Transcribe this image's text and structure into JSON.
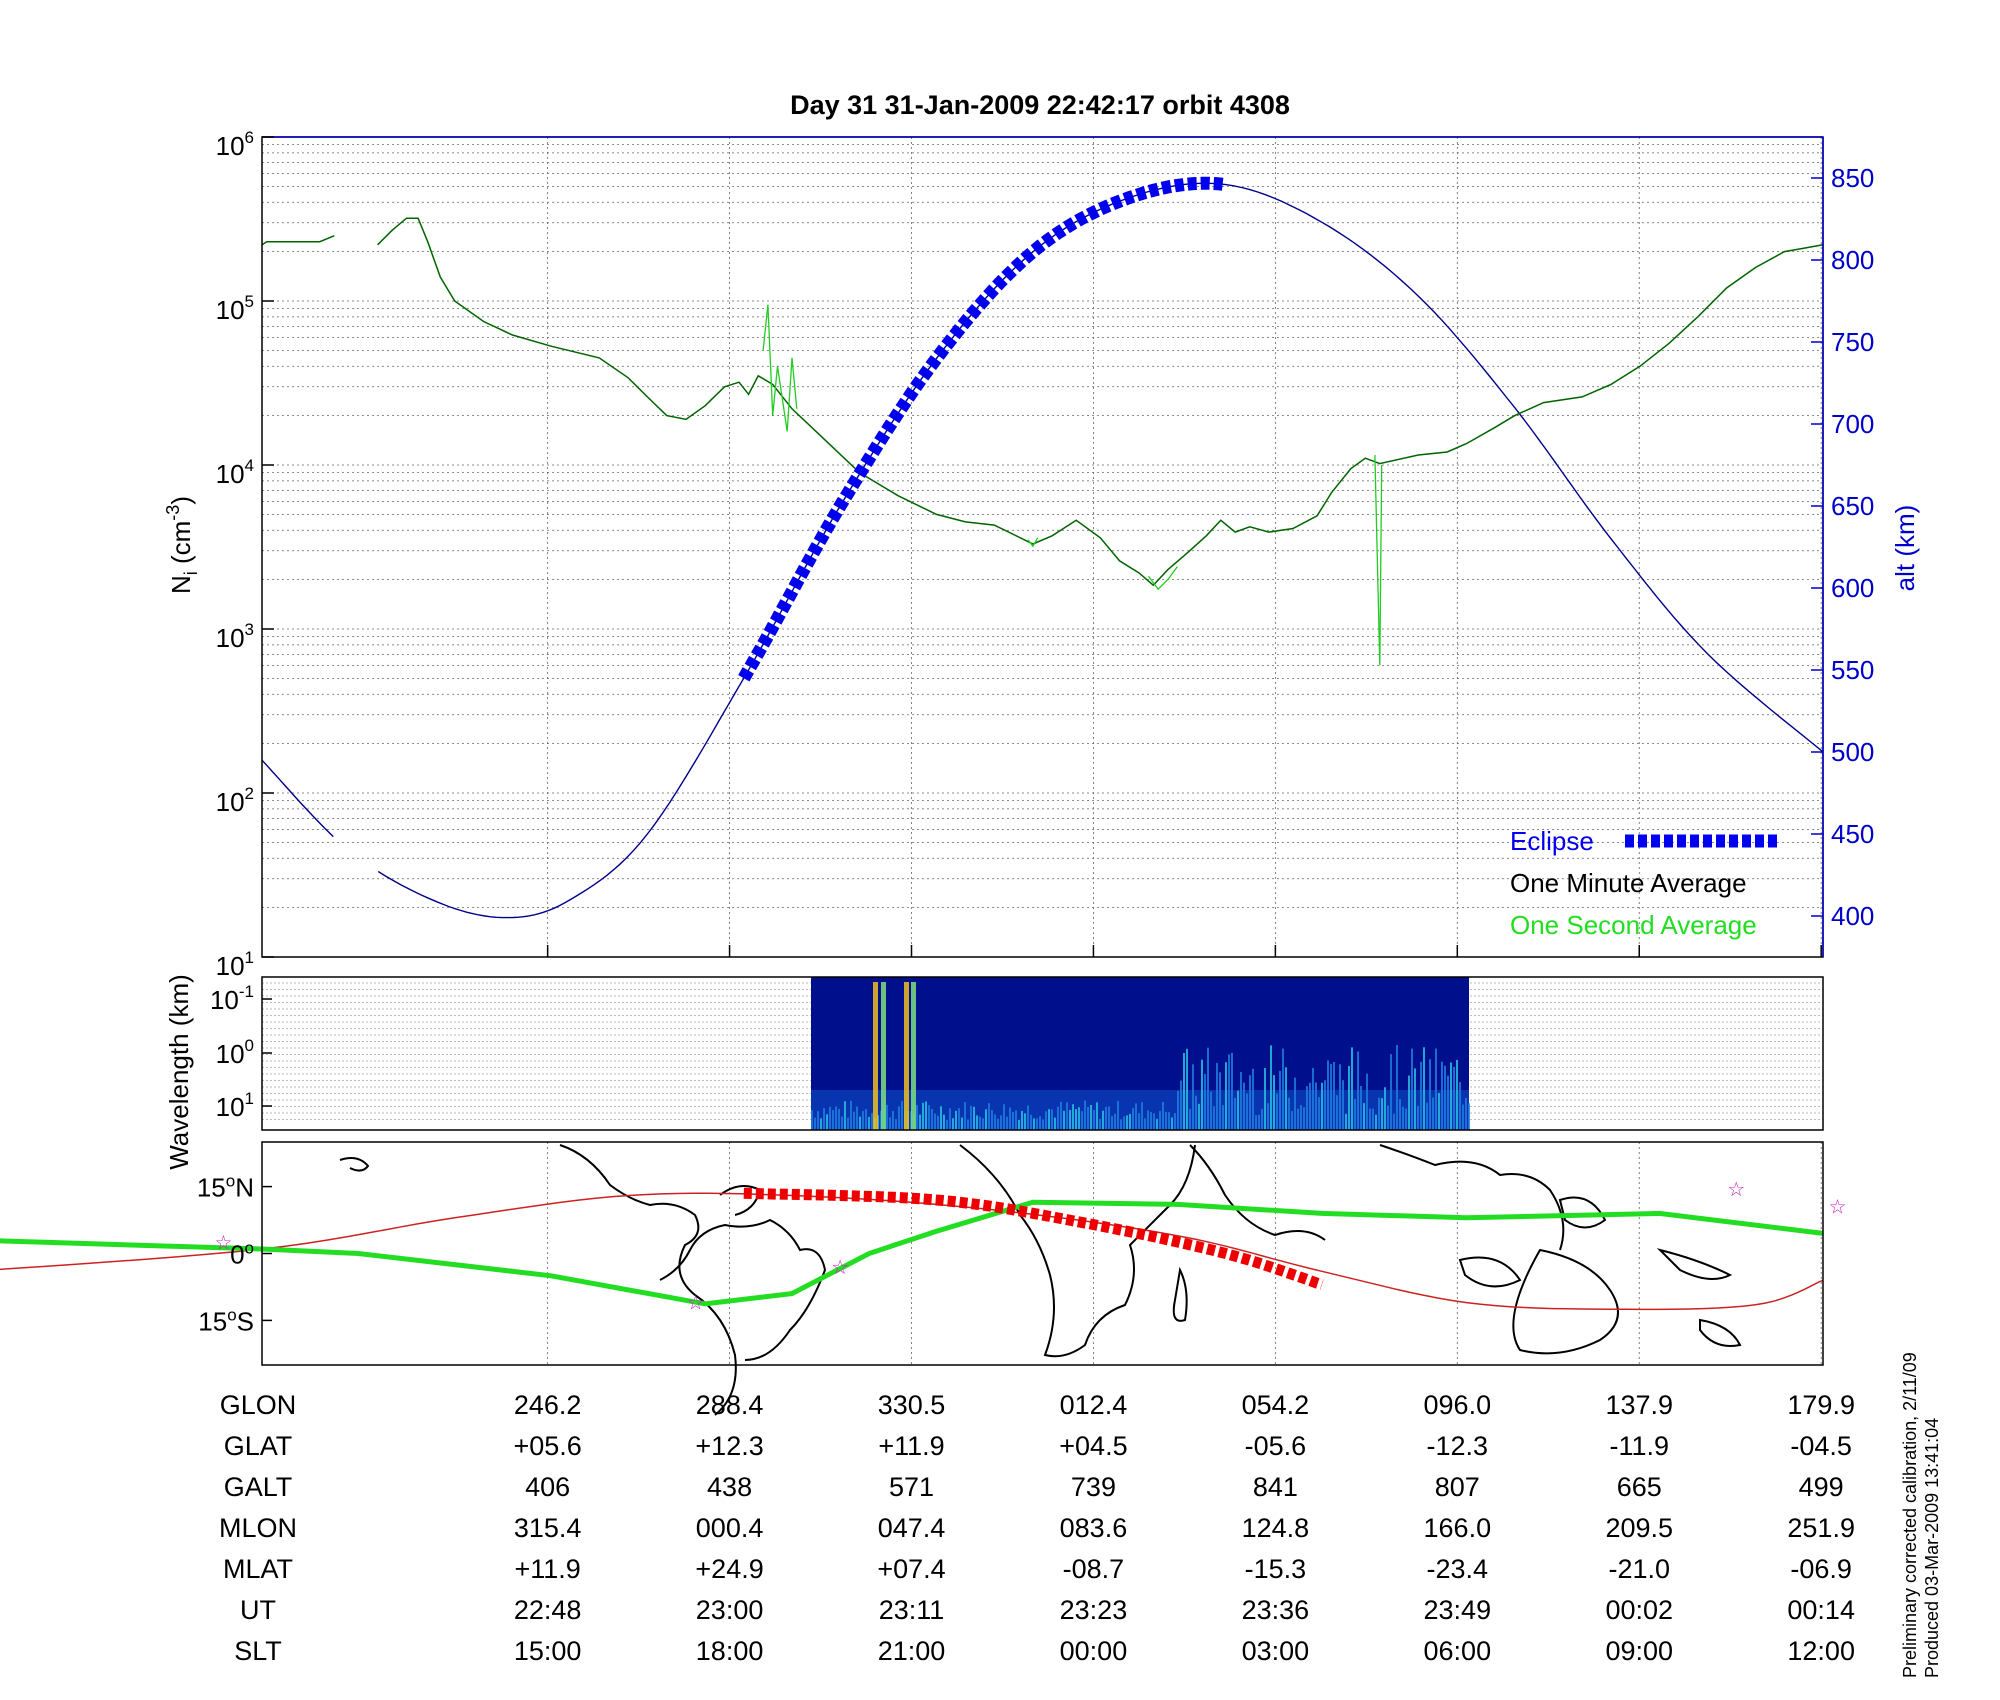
{
  "title": "Day 31  31-Jan-2009 22:42:17   orbit 4308",
  "footnote": {
    "line1": "Preliminary corrected calibration, 2/11/09",
    "line2": "Produced 03-Mar-2009 13:41:04"
  },
  "colors": {
    "eclipse": "#0000ee",
    "altitude": "#00008b",
    "minute_avg": "#006400",
    "second_avg": "#22cc22",
    "track": "#22dd22",
    "equator": "#cc2222",
    "eclipse_map": "#ee0000",
    "star": "#cc22cc"
  },
  "chart_data": [
    {
      "type": "line",
      "panel": "density",
      "ylabel": "N",
      "ylabel_sub": "i",
      "ylabel_unit": " (cm",
      "ylabel_exp": "-3",
      "ylabel_end": ")",
      "y_scale": "log",
      "ylim": [
        10,
        1000000
      ],
      "y_ticks": [
        {
          "base": "10",
          "exp": "1",
          "v": 10
        },
        {
          "base": "10",
          "exp": "2",
          "v": 100
        },
        {
          "base": "10",
          "exp": "3",
          "v": 1000
        },
        {
          "base": "10",
          "exp": "4",
          "v": 10000
        },
        {
          "base": "10",
          "exp": "5",
          "v": 100000
        },
        {
          "base": "10",
          "exp": "6",
          "v": 1000000
        }
      ],
      "y2label": "alt (km)",
      "y2lim": [
        375,
        875
      ],
      "y2_ticks": [
        "400",
        "450",
        "500",
        "550",
        "600",
        "650",
        "700",
        "750",
        "800",
        "850"
      ],
      "x_ticks_ut": [
        "22:48",
        "23:00",
        "23:11",
        "23:23",
        "23:36",
        "23:49",
        "00:02",
        "00:14"
      ],
      "legend": {
        "eclipse": "Eclipse",
        "minute": "One Minute Average",
        "second": "One Second Average"
      },
      "grid": true,
      "series": [
        {
          "name": "One Minute Average",
          "segments": [
            [
              [
                0,
                220000
              ],
              [
                0.05,
                230000
              ],
              [
                0.6,
                230000
              ],
              [
                0.75,
                250000
              ]
            ],
            [
              [
                1.2,
                220000
              ],
              [
                1.35,
                270000
              ],
              [
                1.5,
                320000
              ],
              [
                1.62,
                320000
              ],
              [
                1.72,
                230000
              ],
              [
                1.85,
                140000
              ],
              [
                2.0,
                100000
              ],
              [
                2.3,
                75000
              ],
              [
                2.6,
                62000
              ],
              [
                3.0,
                53000
              ],
              [
                3.5,
                45000
              ],
              [
                3.8,
                34000
              ],
              [
                4.0,
                26000
              ],
              [
                4.2,
                20000
              ],
              [
                4.4,
                19000
              ],
              [
                4.6,
                23000
              ],
              [
                4.8,
                30000
              ],
              [
                4.95,
                32000
              ],
              [
                5.05,
                27000
              ],
              [
                5.15,
                35000
              ],
              [
                5.3,
                31000
              ],
              [
                5.5,
                22000
              ],
              [
                5.8,
                15000
              ],
              [
                6.2,
                9000
              ],
              [
                6.6,
                6500
              ],
              [
                7.0,
                5000
              ],
              [
                7.3,
                4500
              ],
              [
                7.6,
                4300
              ],
              [
                8.0,
                3300
              ],
              [
                8.2,
                3700
              ],
              [
                8.45,
                4600
              ],
              [
                8.7,
                3600
              ],
              [
                8.9,
                2600
              ],
              [
                9.1,
                2200
              ],
              [
                9.25,
                1850
              ],
              [
                9.4,
                2300
              ],
              [
                9.6,
                2900
              ],
              [
                9.8,
                3700
              ],
              [
                9.95,
                4600
              ],
              [
                10.1,
                3900
              ],
              [
                10.25,
                4200
              ],
              [
                10.45,
                3900
              ],
              [
                10.7,
                4100
              ],
              [
                10.95,
                4900
              ],
              [
                11.1,
                6800
              ],
              [
                11.3,
                9500
              ],
              [
                11.45,
                11000
              ],
              [
                11.6,
                10200
              ],
              [
                12.0,
                11500
              ],
              [
                12.3,
                12000
              ],
              [
                12.5,
                13500
              ],
              [
                12.8,
                17000
              ],
              [
                13.0,
                20000
              ],
              [
                13.3,
                24000
              ],
              [
                13.7,
                26000
              ],
              [
                14.0,
                31000
              ],
              [
                14.3,
                40000
              ],
              [
                14.6,
                55000
              ],
              [
                14.9,
                80000
              ],
              [
                15.2,
                120000
              ],
              [
                15.5,
                160000
              ],
              [
                15.8,
                200000
              ],
              [
                16.0,
                210000
              ],
              [
                16.2,
                220000
              ]
            ]
          ]
        },
        {
          "name": "One Second Average",
          "segments": [
            [
              [
                5.2,
                50000
              ],
              [
                5.25,
                95000
              ],
              [
                5.3,
                20000
              ],
              [
                5.35,
                40000
              ],
              [
                5.45,
                16000
              ],
              [
                5.5,
                45000
              ],
              [
                5.55,
                22000
              ]
            ],
            [
              [
                7.95,
                3500
              ],
              [
                8.0,
                3200
              ],
              [
                8.05,
                3600
              ]
            ],
            [
              [
                9.2,
                2100
              ],
              [
                9.3,
                1750
              ],
              [
                9.4,
                2000
              ],
              [
                9.5,
                2400
              ]
            ],
            [
              [
                11.55,
                11500
              ],
              [
                11.6,
                600
              ],
              [
                11.62,
                10000
              ]
            ]
          ]
        }
      ],
      "altitude_km": [
        [
          0,
          495
        ],
        [
          0.9,
          440
        ],
        [
          1.8,
          409
        ],
        [
          2.55,
          399
        ],
        [
          3.2,
          410
        ],
        [
          4.0,
          450
        ],
        [
          5.0,
          545
        ],
        [
          6.0,
          650
        ],
        [
          7.0,
          740
        ],
        [
          8.0,
          805
        ],
        [
          9.0,
          838
        ],
        [
          10.0,
          846
        ],
        [
          11.0,
          823
        ],
        [
          12.0,
          778
        ],
        [
          13.0,
          710
        ],
        [
          14.0,
          630
        ],
        [
          15.0,
          560
        ],
        [
          16.2,
          500
        ]
      ],
      "altitude_gaps": [
        [
          0.8,
          1.2
        ]
      ],
      "eclipse_x": [
        5.0,
        10.0
      ]
    },
    {
      "type": "heatmap",
      "panel": "spectrogram",
      "ylabel": "Wavelength (km)",
      "y_ticks": [
        {
          "base": "10",
          "exp": "-1"
        },
        {
          "base": "10",
          "exp": "0"
        },
        {
          "base": "10",
          "exp": "1"
        }
      ],
      "x_range": [
        5.68,
        12.7
      ]
    },
    {
      "type": "scatter",
      "panel": "map",
      "y_ticks": [
        {
          "deg": "15",
          "sym": "o",
          "hem": "N"
        },
        {
          "deg": "0",
          "sym": "o",
          "hem": ""
        },
        {
          "deg": "15",
          "sym": "o",
          "hem": "S"
        }
      ],
      "ylim": [
        -25,
        25
      ],
      "track_glat": [
        [
          -3,
          3
        ],
        [
          0,
          1
        ],
        [
          1,
          0
        ],
        [
          3,
          -5
        ],
        [
          4.6,
          -11.3
        ],
        [
          5.5,
          -9
        ],
        [
          6.3,
          0
        ],
        [
          7.0,
          5
        ],
        [
          8.0,
          11.5
        ],
        [
          9.5,
          11
        ],
        [
          11.0,
          9
        ],
        [
          12.5,
          8
        ],
        [
          13.5,
          8.5
        ],
        [
          14.5,
          9
        ],
        [
          16.2,
          4.5
        ]
      ],
      "equator_glat": [
        [
          -3,
          -4
        ],
        [
          0,
          1
        ],
        [
          2,
          8
        ],
        [
          3.8,
          13
        ],
        [
          5.5,
          13
        ],
        [
          7.5,
          10
        ],
        [
          9.5,
          4
        ],
        [
          11.0,
          -4
        ],
        [
          12.5,
          -11
        ],
        [
          14.0,
          -12.5
        ],
        [
          15.5,
          -11.5
        ],
        [
          16.2,
          -6
        ]
      ],
      "eclipse_glat": [
        [
          5.0,
          13.5
        ],
        [
          7.0,
          12
        ],
        [
          8.5,
          7
        ],
        [
          10.0,
          0
        ],
        [
          11.0,
          -7
        ]
      ],
      "stars": [
        [
          -0.4,
          2.5
        ],
        [
          4.5,
          -11
        ],
        [
          6.0,
          -3
        ],
        [
          15.3,
          14.5
        ],
        [
          16.35,
          10.5
        ]
      ]
    }
  ],
  "table": {
    "rows": [
      {
        "label": "GLON",
        "values": [
          "246.2",
          "288.4",
          "330.5",
          "012.4",
          "054.2",
          "096.0",
          "137.9",
          "179.9"
        ]
      },
      {
        "label": "GLAT",
        "values": [
          "+05.6",
          "+12.3",
          "+11.9",
          "+04.5",
          "-05.6",
          "-12.3",
          "-11.9",
          "-04.5"
        ]
      },
      {
        "label": "GALT",
        "values": [
          "406",
          "438",
          "571",
          "739",
          "841",
          "807",
          "665",
          "499"
        ]
      },
      {
        "label": "MLON",
        "values": [
          "315.4",
          "000.4",
          "047.4",
          "083.6",
          "124.8",
          "166.0",
          "209.5",
          "251.9"
        ]
      },
      {
        "label": "MLAT",
        "values": [
          "+11.9",
          "+24.9",
          "+07.4",
          "-08.7",
          "-15.3",
          "-23.4",
          "-21.0",
          "-06.9"
        ]
      },
      {
        "label": "UT",
        "values": [
          "22:48",
          "23:00",
          "23:11",
          "23:23",
          "23:36",
          "23:49",
          "00:02",
          "00:14"
        ]
      },
      {
        "label": "SLT",
        "values": [
          "15:00",
          "18:00",
          "21:00",
          "00:00",
          "03:00",
          "06:00",
          "09:00",
          "12:00"
        ]
      }
    ]
  }
}
